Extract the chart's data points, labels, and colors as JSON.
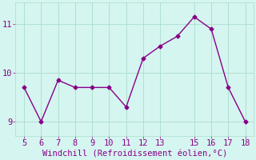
{
  "x": [
    5,
    6,
    7,
    8,
    9,
    10,
    11,
    12,
    13,
    14,
    15,
    16,
    17,
    18
  ],
  "y": [
    9.7,
    9.0,
    9.85,
    9.7,
    9.7,
    9.7,
    9.3,
    10.3,
    10.55,
    10.75,
    11.15,
    10.9,
    9.7,
    9.0
  ],
  "line_color": "#880088",
  "marker": "D",
  "marker_size": 2.5,
  "background_color": "#d5f5f0",
  "grid_color": "#aaddcc",
  "xlabel": "Windchill (Refroidissement éolien,°C)",
  "xlabel_color": "#880088",
  "tick_color": "#880088",
  "label_color": "#880088",
  "xlim": [
    4.5,
    18.5
  ],
  "ylim": [
    8.7,
    11.45
  ],
  "yticks": [
    9,
    10,
    11
  ],
  "xticks": [
    5,
    6,
    7,
    8,
    9,
    10,
    11,
    12,
    13,
    15,
    16,
    17,
    18
  ],
  "line_width": 1.0,
  "font_size": 7.5
}
